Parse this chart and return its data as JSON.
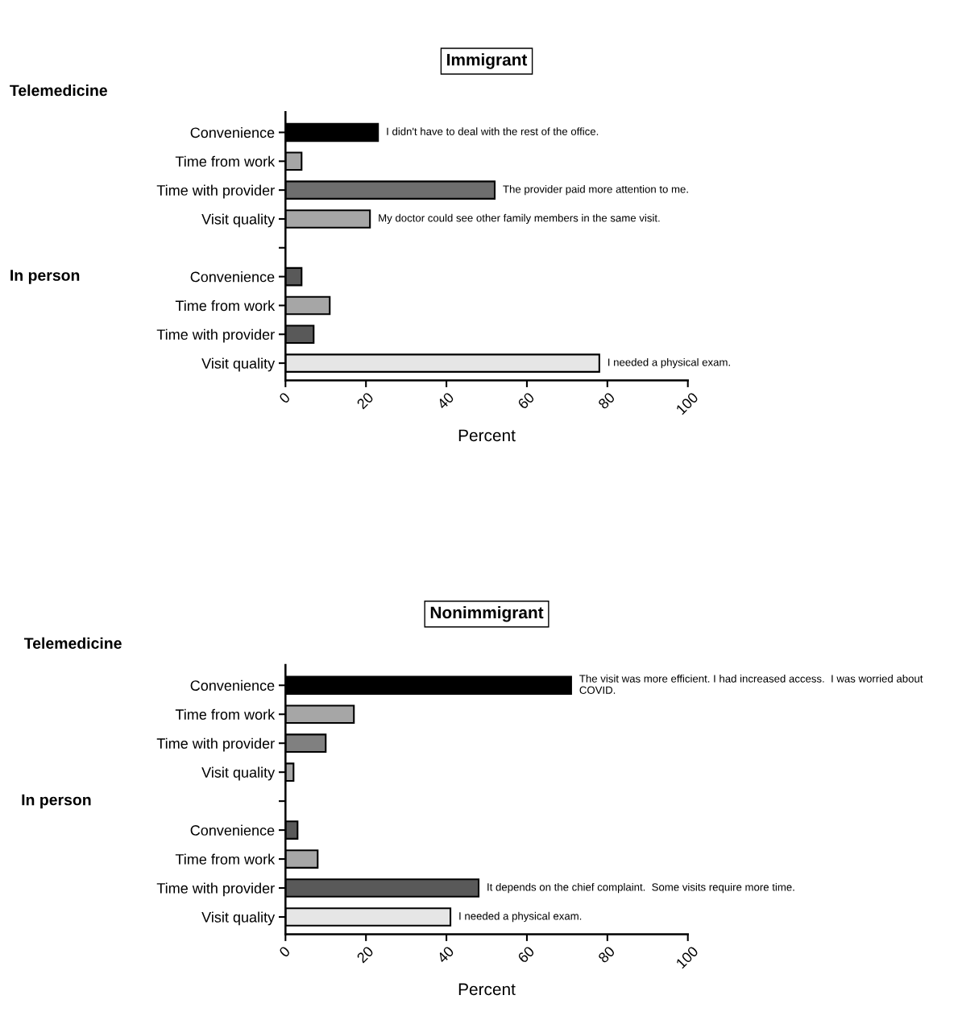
{
  "chart_data": [
    {
      "type": "bar",
      "orientation": "horizontal",
      "title": "Immigrant",
      "xlabel": "Percent",
      "categories": [
        "Convenience",
        "Time from work",
        "Time with provider",
        "Visit quality",
        null,
        "Convenience",
        "Time from work",
        "Time with provider",
        "Visit quality"
      ],
      "values": [
        23,
        4,
        52,
        21,
        null,
        4,
        11,
        7,
        78
      ],
      "colors": [
        "#000000",
        "#a6a6a6",
        "#6e6e6e",
        "#a6a6a6",
        null,
        "#595959",
        "#a6a6a6",
        "#595959",
        "#e6e6e6"
      ],
      "value_labels": [
        "I didn't have to deal with the rest of the office.",
        null,
        "The provider paid more attention to me.",
        "My doctor could see other family members in the same visit.",
        null,
        null,
        null,
        null,
        "I needed a physical exam."
      ],
      "annotations": [
        "Telemedicine",
        "In person"
      ],
      "xlim": [
        0,
        100
      ],
      "xticks": [
        0,
        20,
        40,
        60,
        80,
        100
      ],
      "grid": false,
      "legend": false
    },
    {
      "type": "bar",
      "orientation": "horizontal",
      "title": "Nonimmigrant",
      "xlabel": "Percent",
      "categories": [
        "Convenience",
        "Time from work",
        "Time with provider",
        "Visit quality",
        null,
        "Convenience",
        "Time from work",
        "Time with provider",
        "Visit quality"
      ],
      "values": [
        71,
        17,
        10,
        2,
        null,
        3,
        8,
        48,
        41
      ],
      "colors": [
        "#000000",
        "#a6a6a6",
        "#808080",
        "#a6a6a6",
        null,
        "#595959",
        "#a6a6a6",
        "#595959",
        "#e6e6e6"
      ],
      "value_labels": [
        "The visit was more efficient. I had increased access.  I was worried about COVID.",
        null,
        null,
        null,
        null,
        null,
        null,
        "It depends on the chief complaint.  Some visits require more time.",
        "I needed a physical exam."
      ],
      "annotations": [
        "Telemedicine",
        "In person"
      ],
      "xlim": [
        0,
        100
      ],
      "xticks": [
        0,
        20,
        40,
        60,
        80,
        100
      ],
      "grid": false,
      "legend": false
    }
  ]
}
